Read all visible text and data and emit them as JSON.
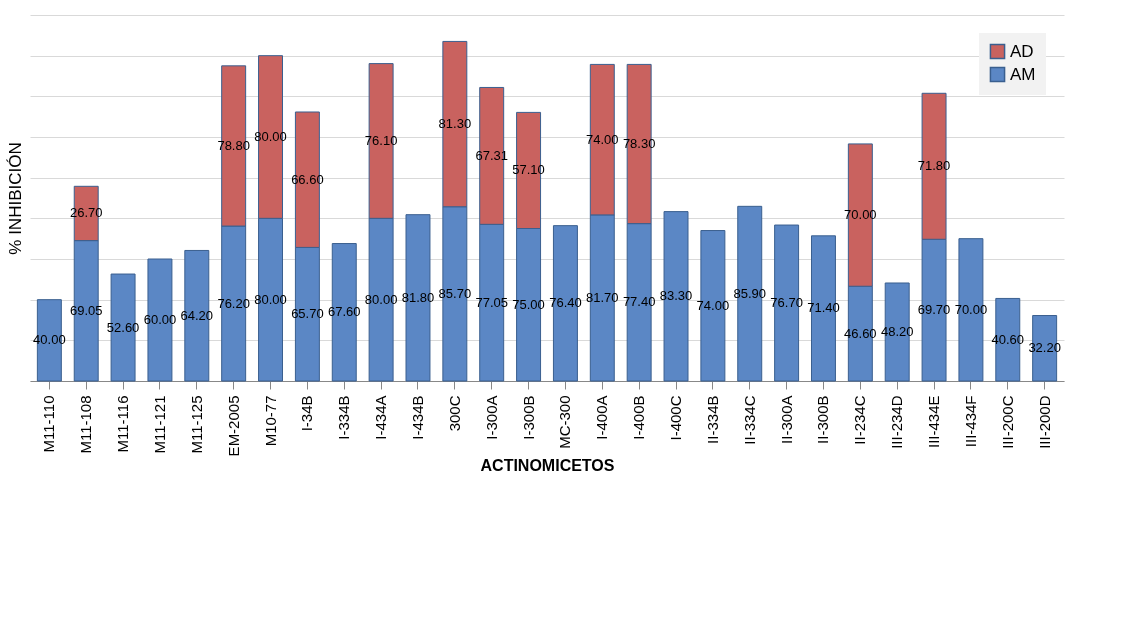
{
  "chart_data": {
    "type": "bar",
    "stacked": true,
    "xlabel": "ACTINOMICETOS",
    "ylabel": "% INHIBICIÓN",
    "categories": [
      "M11-110",
      "M11-108",
      "M11-116",
      "M11-121",
      "M11-125",
      "EM-2005",
      "M10-77",
      "I-34B",
      "I-334B",
      "I-434A",
      "I-434B",
      "300C",
      "I-300A",
      "I-300B",
      "MC-300",
      "I-400A",
      "I-400B",
      "I-400C",
      "II-334B",
      "II-334C",
      "II-300A",
      "II-300B",
      "II-234C",
      "III-234D",
      "III-434E",
      "III-434F",
      "III-200C",
      "III-200D"
    ],
    "series": [
      {
        "name": "AM",
        "color": "#5b87c5",
        "values": [
          40.0,
          69.05,
          52.6,
          60.0,
          64.2,
          76.2,
          80.0,
          65.7,
          67.6,
          80.0,
          81.8,
          85.7,
          77.05,
          75.0,
          76.4,
          81.7,
          77.4,
          83.3,
          74.0,
          85.9,
          76.7,
          71.4,
          46.6,
          48.2,
          69.7,
          70.0,
          40.6,
          32.2
        ],
        "value_labels": [
          "40.00",
          "69.05",
          "52.60",
          "60.00",
          "64.20",
          "76.20",
          "80.00",
          "65.70",
          "67.60",
          "80.00",
          "81.80",
          "85.70",
          "77.05",
          "75.00",
          "76.40",
          "81.70",
          "77.40",
          "83.30",
          "74.00",
          "85.90",
          "76.70",
          "71.40",
          "46.60",
          "48.20",
          "69.70",
          "70.00",
          "40.60",
          "32.20"
        ]
      },
      {
        "name": "AD",
        "color": "#c9625f",
        "values": [
          null,
          26.7,
          null,
          null,
          null,
          78.8,
          80.0,
          66.6,
          null,
          76.1,
          null,
          81.3,
          67.31,
          57.1,
          null,
          74.0,
          78.3,
          null,
          null,
          null,
          null,
          null,
          70.0,
          null,
          71.8,
          null,
          null,
          null
        ],
        "value_labels": [
          null,
          "26.70",
          null,
          null,
          null,
          "78.80",
          "80.00",
          "66.60",
          null,
          "76.10",
          null,
          "81.30",
          "67.31",
          "57.10",
          null,
          "74.00",
          "78.30",
          null,
          null,
          null,
          null,
          null,
          "70.00",
          null,
          "71.80",
          null,
          null,
          null
        ]
      }
    ],
    "ylim": [
      0,
      180
    ],
    "yticks": [
      {
        "value": 0,
        "label": null
      },
      {
        "value": 20,
        "label": null
      },
      {
        "value": 40,
        "label": null
      },
      {
        "value": 60,
        "label": null
      },
      {
        "value": 80,
        "label": null
      },
      {
        "value": 100,
        "label": null
      },
      {
        "value": 120,
        "label": null
      },
      {
        "value": 140,
        "label": null
      },
      {
        "value": 160,
        "label": null
      },
      {
        "value": 180,
        "label": null
      }
    ],
    "grid": "y",
    "legend": "top right"
  }
}
